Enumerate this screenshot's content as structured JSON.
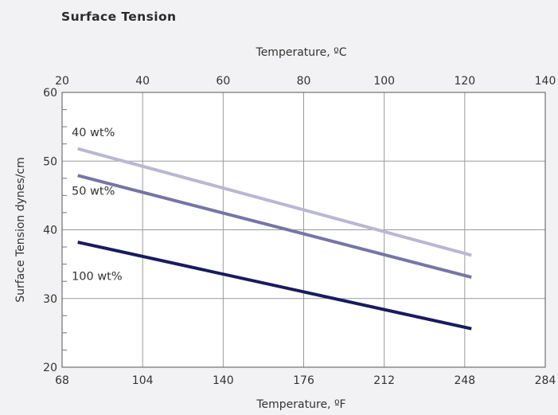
{
  "chart_data": {
    "type": "line",
    "title": "Surface Tension",
    "ylabel": "Surface Tension dynes/cm",
    "xlabel_bottom": "Temperature, ºF",
    "xlabel_top": "Temperature, ºC",
    "ylim": [
      20,
      60
    ],
    "yticks": [
      "20",
      "30",
      "40",
      "50",
      "60"
    ],
    "xlim_f": [
      68,
      284
    ],
    "xticks_bottom": [
      "68",
      "104",
      "140",
      "176",
      "212",
      "248",
      "284"
    ],
    "xlim_c": [
      20,
      140
    ],
    "xticks_top": [
      "20",
      "40",
      "60",
      "80",
      "100",
      "120",
      "140"
    ],
    "grid": true,
    "series": [
      {
        "name": "40 wt%",
        "color": "#b9b7d3",
        "x_f": [
          75,
          251
        ],
        "y": [
          51.8,
          36.3
        ]
      },
      {
        "name": "50 wt%",
        "color": "#7675a6",
        "x_f": [
          75,
          251
        ],
        "y": [
          47.9,
          33.1
        ]
      },
      {
        "name": "100 wt%",
        "color": "#1a1a5e",
        "x_f": [
          75,
          251
        ],
        "y": [
          38.2,
          25.6
        ]
      }
    ]
  }
}
